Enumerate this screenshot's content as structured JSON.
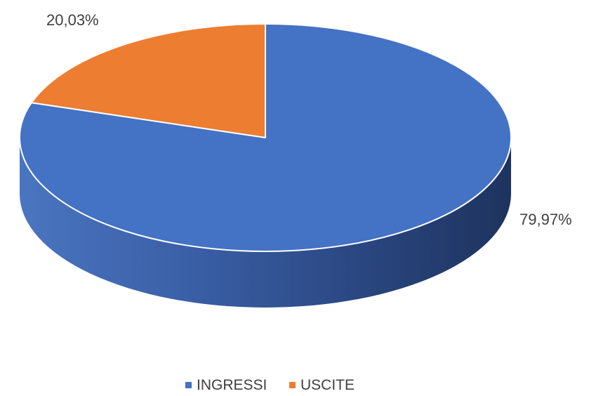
{
  "chart_data": {
    "type": "pie",
    "title": "",
    "style": "3d",
    "legend_position": "bottom",
    "slices": [
      {
        "name": "INGRESSI",
        "value": 79.97,
        "label": "79,97%",
        "color": "#4472C4"
      },
      {
        "name": "USCITE",
        "value": 20.03,
        "label": "20,03%",
        "color": "#ED7D31"
      }
    ]
  }
}
